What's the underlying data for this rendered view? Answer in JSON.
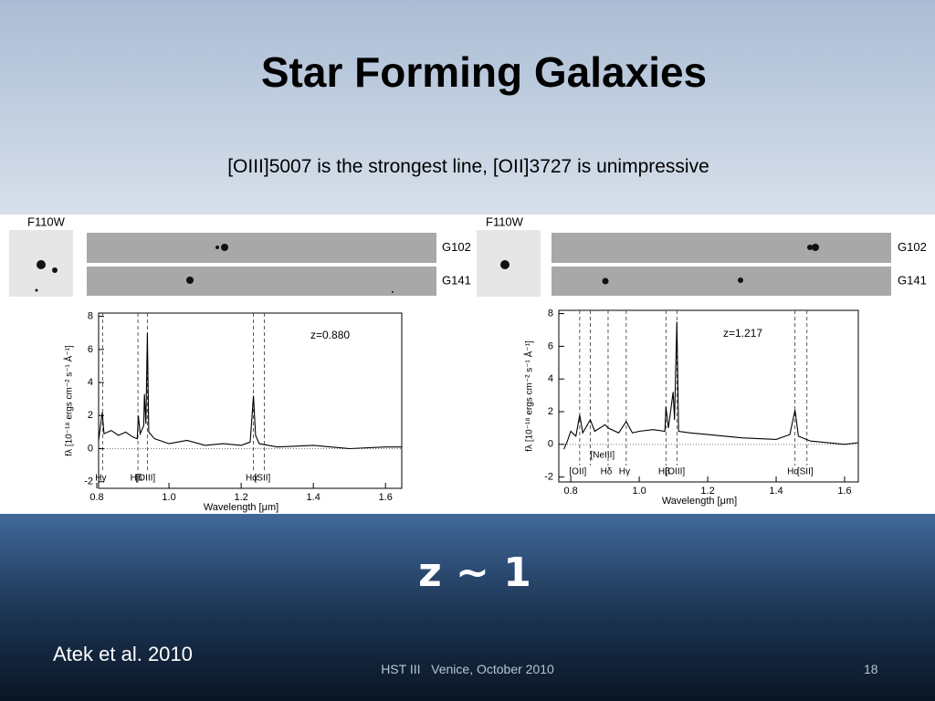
{
  "title": "Star Forming Galaxies",
  "subtitle": "[OIII]5007 is the strongest line, [OII]3727 is unimpressive",
  "panels": [
    {
      "filter": "F110W",
      "grisms": [
        "G102",
        "G141"
      ],
      "redshift": "z=0.880",
      "x_label": "Wavelength [μm]",
      "y_label": "fλ [10⁻¹⁸ ergs cm⁻² s⁻¹ Å⁻¹]",
      "xlim": [
        0.805,
        1.645
      ],
      "ylim": [
        -2.4,
        8.2
      ],
      "xticks": [
        0.8,
        {
          "value": 1.0,
          "label": "1.0"
        },
        1.2,
        1.4,
        1.6
      ],
      "yticks": [
        -2,
        0,
        2,
        4,
        6,
        8
      ],
      "lines": [
        {
          "label": "Hγ",
          "wavelength": 0.816
        },
        {
          "label": "Hβ",
          "wavelength": 0.914
        },
        {
          "label": "[OIII]",
          "wavelength": 0.94
        },
        {
          "label": "Hα",
          "wavelength": 1.234
        },
        {
          "label": "[SII]",
          "wavelength": 1.264
        }
      ],
      "spectrum": {
        "x": [
          0.805,
          0.815,
          0.82,
          0.84,
          0.86,
          0.88,
          0.9,
          0.912,
          0.915,
          0.92,
          0.93,
          0.932,
          0.936,
          0.94,
          0.944,
          0.96,
          1.0,
          1.05,
          1.1,
          1.15,
          1.2,
          1.225,
          1.234,
          1.24,
          1.25,
          1.3,
          1.4,
          1.5,
          1.6,
          1.645
        ],
        "y": [
          0.5,
          2.2,
          0.9,
          1.1,
          0.8,
          1.0,
          0.7,
          0.6,
          2.0,
          0.9,
          1.4,
          3.3,
          1.5,
          7.0,
          1.0,
          0.6,
          0.3,
          0.5,
          0.2,
          0.3,
          0.2,
          0.4,
          3.2,
          0.8,
          0.3,
          0.1,
          0.2,
          0.0,
          0.1,
          0.1
        ]
      }
    },
    {
      "filter": "F110W",
      "grisms": [
        "G102",
        "G141"
      ],
      "redshift": "z=1.217",
      "x_label": "Wavelength [μm]",
      "y_label": "fλ [10⁻¹⁸ ergs cm⁻² s⁻¹ Å⁻¹]",
      "xlim": [
        0.765,
        1.64
      ],
      "ylim": [
        -2.3,
        8.2
      ],
      "xticks": [
        0.8,
        {
          "value": 1.0,
          "label": "1.0"
        },
        1.2,
        1.4,
        1.6
      ],
      "yticks": [
        -2,
        0,
        2,
        4,
        6,
        8
      ],
      "lines": [
        {
          "label": "[OII]",
          "wavelength": 0.826
        },
        {
          "label": "[NeIII]",
          "wavelength": 0.857
        },
        {
          "label": "Hδ",
          "wavelength": 0.909
        },
        {
          "label": "Hγ",
          "wavelength": 0.962
        },
        {
          "label": "Hβ",
          "wavelength": 1.078
        },
        {
          "label": "[OIII]",
          "wavelength": 1.11
        },
        {
          "label": "Hα",
          "wavelength": 1.455
        },
        {
          "label": "[SII]",
          "wavelength": 1.49
        }
      ],
      "spectrum": {
        "x": [
          0.78,
          0.79,
          0.8,
          0.815,
          0.826,
          0.835,
          0.857,
          0.87,
          0.9,
          0.909,
          0.94,
          0.962,
          0.98,
          1.0,
          1.04,
          1.075,
          1.078,
          1.085,
          1.099,
          1.103,
          1.11,
          1.115,
          1.15,
          1.2,
          1.3,
          1.4,
          1.44,
          1.455,
          1.465,
          1.5,
          1.6,
          1.64
        ],
        "y": [
          -0.3,
          0.2,
          0.8,
          0.5,
          1.8,
          0.7,
          1.5,
          0.8,
          1.2,
          1.0,
          0.7,
          1.4,
          0.7,
          0.8,
          0.9,
          0.8,
          2.3,
          1.0,
          3.2,
          1.5,
          7.5,
          0.8,
          0.7,
          0.6,
          0.4,
          0.3,
          0.6,
          2.1,
          0.5,
          0.2,
          0.0,
          0.1
        ]
      }
    }
  ],
  "highlight": "z ~ 1",
  "citation": "Atek et al. 2010",
  "footer": {
    "event": "HST III   Venice, October 2010",
    "page": "18"
  }
}
